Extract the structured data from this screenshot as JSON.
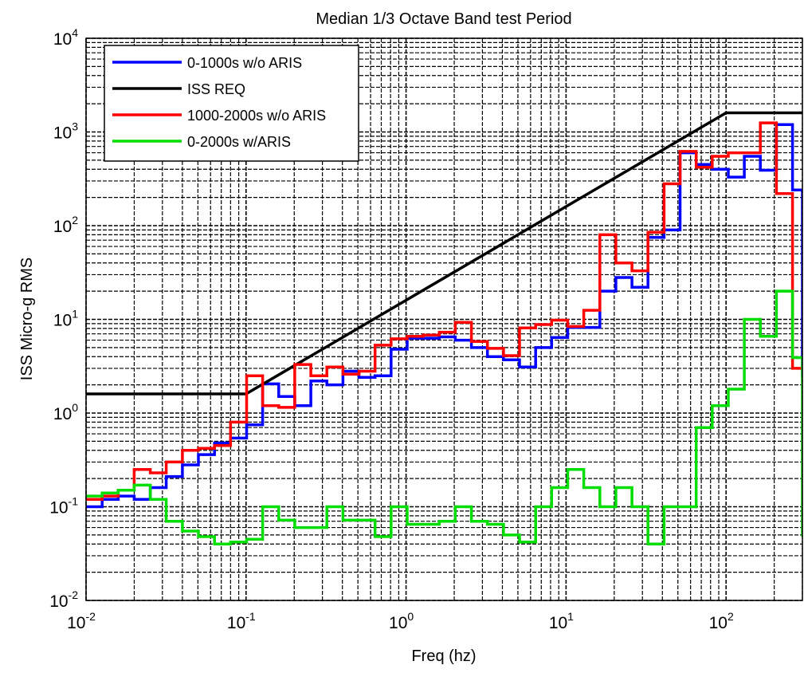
{
  "chart_data": {
    "type": "line",
    "title": "Median 1/3 Octave Band test Period",
    "xlabel": "Freq (hz)",
    "ylabel": "ISS Micro-g RMS",
    "x_scale": "log",
    "y_scale": "log",
    "xlim": [
      0.01,
      300
    ],
    "ylim": [
      0.01,
      10000
    ],
    "x_ticks": [
      {
        "value": 0.01,
        "base": "10",
        "exp": "-2"
      },
      {
        "value": 0.1,
        "base": "10",
        "exp": "-1"
      },
      {
        "value": 1,
        "base": "10",
        "exp": "0"
      },
      {
        "value": 10,
        "base": "10",
        "exp": "1"
      },
      {
        "value": 100,
        "base": "10",
        "exp": "2"
      }
    ],
    "y_ticks": [
      {
        "value": 0.01,
        "base": "10",
        "exp": "-2"
      },
      {
        "value": 0.1,
        "base": "10",
        "exp": "-1"
      },
      {
        "value": 1,
        "base": "10",
        "exp": "0"
      },
      {
        "value": 10,
        "base": "10",
        "exp": "1"
      },
      {
        "value": 100,
        "base": "10",
        "exp": "2"
      },
      {
        "value": 1000,
        "base": "10",
        "exp": "3"
      },
      {
        "value": 10000,
        "base": "10",
        "exp": "4"
      }
    ],
    "grid": true,
    "legend_position": "top-left",
    "series": [
      {
        "name": "0-1000s w/o ARIS",
        "color": "#0000ff",
        "step": true,
        "x": [
          0.01,
          0.0126,
          0.0159,
          0.02,
          0.0252,
          0.0317,
          0.04,
          0.0504,
          0.0635,
          0.08,
          0.1008,
          0.127,
          0.16,
          0.2016,
          0.254,
          0.32,
          0.4032,
          0.508,
          0.64,
          0.8063,
          1.016,
          1.28,
          1.6127,
          2.032,
          2.56,
          3.2254,
          4.064,
          5.12,
          6.4508,
          8.128,
          10.24,
          12.9016,
          16.256,
          20.48,
          25.8032,
          32.512,
          40.96,
          51.6064,
          65.024,
          81.92,
          103.2128,
          130.048,
          163.84,
          206.4256,
          260.096,
          300
        ],
        "y": [
          0.1,
          0.12,
          0.13,
          0.12,
          0.16,
          0.21,
          0.28,
          0.36,
          0.48,
          0.54,
          0.75,
          2.05,
          1.5,
          1.2,
          2.2,
          2.0,
          2.8,
          2.4,
          2.5,
          4.8,
          6.3,
          6.3,
          6.5,
          6.0,
          5.0,
          4.0,
          3.7,
          3.1,
          5.0,
          6.4,
          8.2,
          8.2,
          20.0,
          28.0,
          22.0,
          75.0,
          90.0,
          600.0,
          450.0,
          400.0,
          330.0,
          550.0,
          390.0,
          1200.0,
          240.0,
          2.4
        ]
      },
      {
        "name": "ISS REQ",
        "color": "#000000",
        "step": false,
        "x": [
          0.01,
          0.1,
          100,
          300
        ],
        "y": [
          1.6,
          1.6,
          1600,
          1600
        ]
      },
      {
        "name": "1000-2000s w/o ARIS",
        "color": "#ff0000",
        "step": true,
        "x": [
          0.01,
          0.0126,
          0.0159,
          0.02,
          0.0252,
          0.0317,
          0.04,
          0.0504,
          0.0635,
          0.08,
          0.1008,
          0.127,
          0.16,
          0.2016,
          0.254,
          0.32,
          0.4032,
          0.508,
          0.64,
          0.8063,
          1.016,
          1.28,
          1.6127,
          2.032,
          2.56,
          3.2254,
          4.064,
          5.12,
          6.4508,
          8.128,
          10.24,
          12.9016,
          16.256,
          20.48,
          25.8032,
          32.512,
          40.96,
          51.6064,
          65.024,
          81.92,
          103.2128,
          130.048,
          163.84,
          206.4256,
          260.096,
          300
        ],
        "y": [
          0.12,
          0.13,
          0.15,
          0.25,
          0.23,
          0.3,
          0.4,
          0.42,
          0.45,
          0.8,
          2.5,
          1.2,
          1.15,
          3.3,
          2.5,
          3.1,
          2.6,
          2.8,
          5.3,
          6.2,
          6.6,
          6.8,
          7.3,
          9.3,
          5.8,
          4.9,
          4.1,
          8.1,
          8.8,
          9.8,
          8.4,
          12.5,
          80.0,
          40.0,
          33.0,
          85.0,
          280.0,
          620.0,
          420.0,
          550.0,
          600.0,
          600.0,
          1250.0,
          220.0,
          3.0,
          3.0
        ]
      },
      {
        "name": "0-2000s w/ARIS",
        "color": "#00dd00",
        "step": true,
        "x": [
          0.01,
          0.0126,
          0.0159,
          0.02,
          0.0252,
          0.0317,
          0.04,
          0.0504,
          0.0635,
          0.08,
          0.1008,
          0.127,
          0.16,
          0.2016,
          0.254,
          0.32,
          0.4032,
          0.508,
          0.64,
          0.8063,
          1.016,
          1.28,
          1.6127,
          2.032,
          2.56,
          3.2254,
          4.064,
          5.12,
          6.4508,
          8.128,
          10.24,
          12.9016,
          16.256,
          20.48,
          25.8032,
          32.512,
          40.96,
          51.6064,
          65.024,
          81.92,
          103.2128,
          130.048,
          163.84,
          206.4256,
          260.096,
          300
        ],
        "y": [
          0.13,
          0.14,
          0.15,
          0.17,
          0.12,
          0.07,
          0.055,
          0.048,
          0.04,
          0.042,
          0.045,
          0.1,
          0.072,
          0.06,
          0.06,
          0.1,
          0.072,
          0.072,
          0.048,
          0.1,
          0.065,
          0.065,
          0.07,
          0.1,
          0.07,
          0.065,
          0.05,
          0.042,
          0.1,
          0.16,
          0.25,
          0.16,
          0.1,
          0.16,
          0.1,
          0.04,
          0.1,
          0.1,
          0.7,
          1.2,
          1.8,
          10.0,
          6.6,
          20.0,
          3.9,
          0.048
        ]
      }
    ]
  }
}
